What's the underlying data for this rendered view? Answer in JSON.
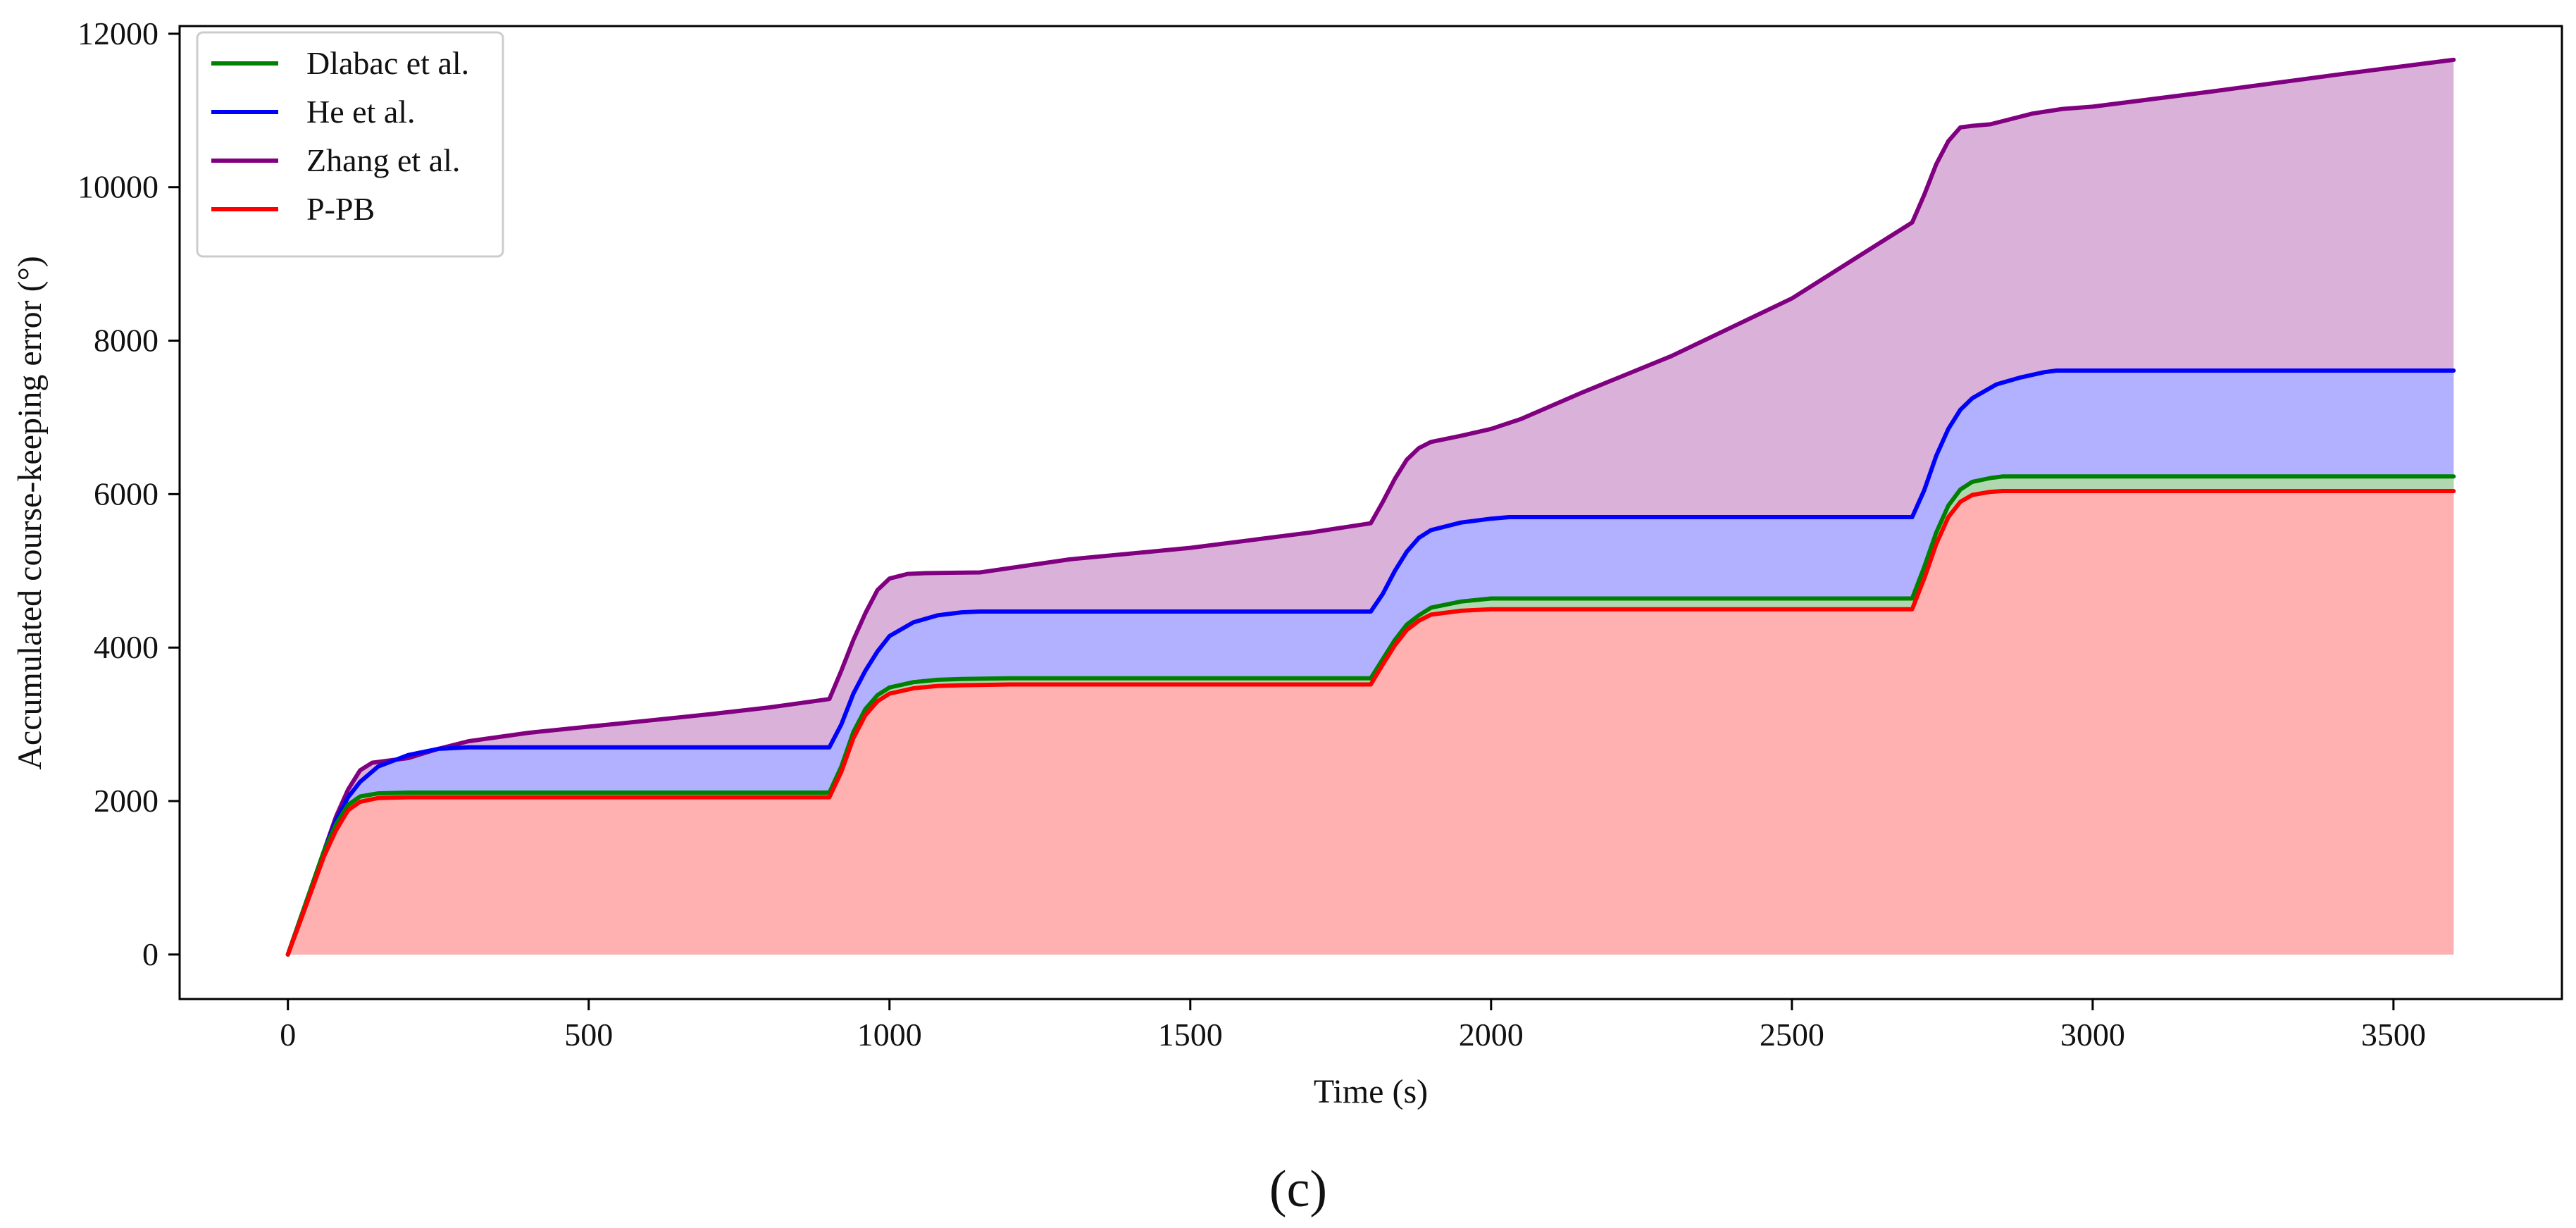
{
  "chart_data": {
    "type": "area",
    "title": "",
    "xlabel": "Time (s)",
    "ylabel": "Accumulated course-keeping error (°)",
    "caption": "(c)",
    "xlim": [
      -180,
      3780
    ],
    "ylim": [
      -580,
      12100
    ],
    "xticks": [
      0,
      500,
      1000,
      1500,
      2000,
      2500,
      3000,
      3500
    ],
    "yticks": [
      0,
      2000,
      4000,
      6000,
      8000,
      10000,
      12000
    ],
    "grid": false,
    "legend_position": "top-left",
    "series": [
      {
        "name": "Zhang et al.",
        "color": "#800080",
        "fill": "#d9b1d9",
        "x": [
          0,
          20,
          40,
          60,
          80,
          100,
          120,
          140,
          160,
          200,
          250,
          300,
          400,
          500,
          600,
          700,
          800,
          900,
          920,
          940,
          960,
          980,
          1000,
          1030,
          1060,
          1100,
          1150,
          1300,
          1500,
          1700,
          1800,
          1820,
          1840,
          1860,
          1880,
          1900,
          1950,
          2000,
          2050,
          2100,
          2150,
          2300,
          2500,
          2700,
          2720,
          2740,
          2760,
          2780,
          2800,
          2830,
          2860,
          2900,
          2950,
          3000,
          3200,
          3400,
          3600
        ],
        "y": [
          0,
          450,
          900,
          1350,
          1800,
          2150,
          2400,
          2500,
          2520,
          2560,
          2680,
          2780,
          2890,
          2970,
          3050,
          3130,
          3220,
          3330,
          3700,
          4100,
          4450,
          4750,
          4900,
          4960,
          4970,
          4975,
          4980,
          5150,
          5300,
          5500,
          5620,
          5900,
          6200,
          6450,
          6600,
          6680,
          6760,
          6850,
          6980,
          7150,
          7320,
          7800,
          8550,
          9540,
          9900,
          10300,
          10600,
          10780,
          10800,
          10820,
          10880,
          10960,
          11020,
          11050,
          11250,
          11460,
          11660
        ]
      },
      {
        "name": "He et al.",
        "color": "#0000ff",
        "fill": "#b1b1ff",
        "x": [
          0,
          20,
          40,
          60,
          80,
          100,
          120,
          150,
          200,
          250,
          300,
          500,
          700,
          900,
          920,
          940,
          960,
          980,
          1000,
          1040,
          1080,
          1120,
          1150,
          1300,
          1500,
          1800,
          1820,
          1840,
          1860,
          1880,
          1900,
          1950,
          2000,
          2030,
          2200,
          2500,
          2700,
          2720,
          2740,
          2760,
          2780,
          2800,
          2840,
          2880,
          2920,
          2940,
          3200,
          3600
        ],
        "y": [
          0,
          450,
          900,
          1350,
          1750,
          2050,
          2250,
          2450,
          2600,
          2680,
          2700,
          2700,
          2700,
          2700,
          3000,
          3400,
          3700,
          3950,
          4150,
          4330,
          4420,
          4460,
          4470,
          4470,
          4470,
          4470,
          4700,
          5000,
          5250,
          5430,
          5530,
          5630,
          5680,
          5700,
          5700,
          5700,
          5700,
          6050,
          6500,
          6850,
          7100,
          7250,
          7430,
          7520,
          7590,
          7610,
          7610,
          7610
        ]
      },
      {
        "name": "Dlabac et al.",
        "color": "#008000",
        "fill": "#b0d8b0",
        "x": [
          0,
          20,
          40,
          60,
          80,
          100,
          120,
          150,
          200,
          300,
          500,
          700,
          900,
          920,
          940,
          960,
          980,
          1000,
          1040,
          1080,
          1120,
          1200,
          1500,
          1800,
          1820,
          1840,
          1860,
          1880,
          1900,
          1950,
          2000,
          2200,
          2500,
          2700,
          2720,
          2740,
          2760,
          2780,
          2800,
          2830,
          2850,
          3200,
          3600
        ],
        "y": [
          0,
          450,
          900,
          1350,
          1700,
          1950,
          2060,
          2100,
          2110,
          2110,
          2110,
          2110,
          2110,
          2450,
          2900,
          3200,
          3380,
          3480,
          3550,
          3580,
          3590,
          3600,
          3600,
          3600,
          3850,
          4100,
          4300,
          4420,
          4520,
          4600,
          4640,
          4640,
          4640,
          4640,
          5050,
          5500,
          5850,
          6060,
          6160,
          6210,
          6230,
          6230,
          6230
        ]
      },
      {
        "name": "P-PB",
        "color": "#ff0000",
        "fill": "#ffb1b1",
        "x": [
          0,
          20,
          40,
          60,
          80,
          100,
          120,
          150,
          200,
          300,
          500,
          700,
          900,
          920,
          940,
          960,
          980,
          1000,
          1040,
          1080,
          1120,
          1200,
          1500,
          1800,
          1820,
          1840,
          1860,
          1880,
          1900,
          1950,
          2000,
          2200,
          2500,
          2700,
          2720,
          2740,
          2760,
          2780,
          2800,
          2830,
          2850,
          3200,
          3600
        ],
        "y": [
          0,
          420,
          850,
          1280,
          1620,
          1880,
          1990,
          2040,
          2050,
          2050,
          2050,
          2050,
          2050,
          2380,
          2820,
          3120,
          3300,
          3400,
          3470,
          3500,
          3510,
          3520,
          3520,
          3520,
          3780,
          4030,
          4230,
          4350,
          4430,
          4480,
          4500,
          4500,
          4500,
          4500,
          4900,
          5350,
          5700,
          5900,
          5990,
          6030,
          6040,
          6040,
          6040
        ]
      }
    ],
    "legend_order": [
      "Dlabac et al.",
      "He et al.",
      "Zhang et al.",
      "P-PB"
    ]
  }
}
